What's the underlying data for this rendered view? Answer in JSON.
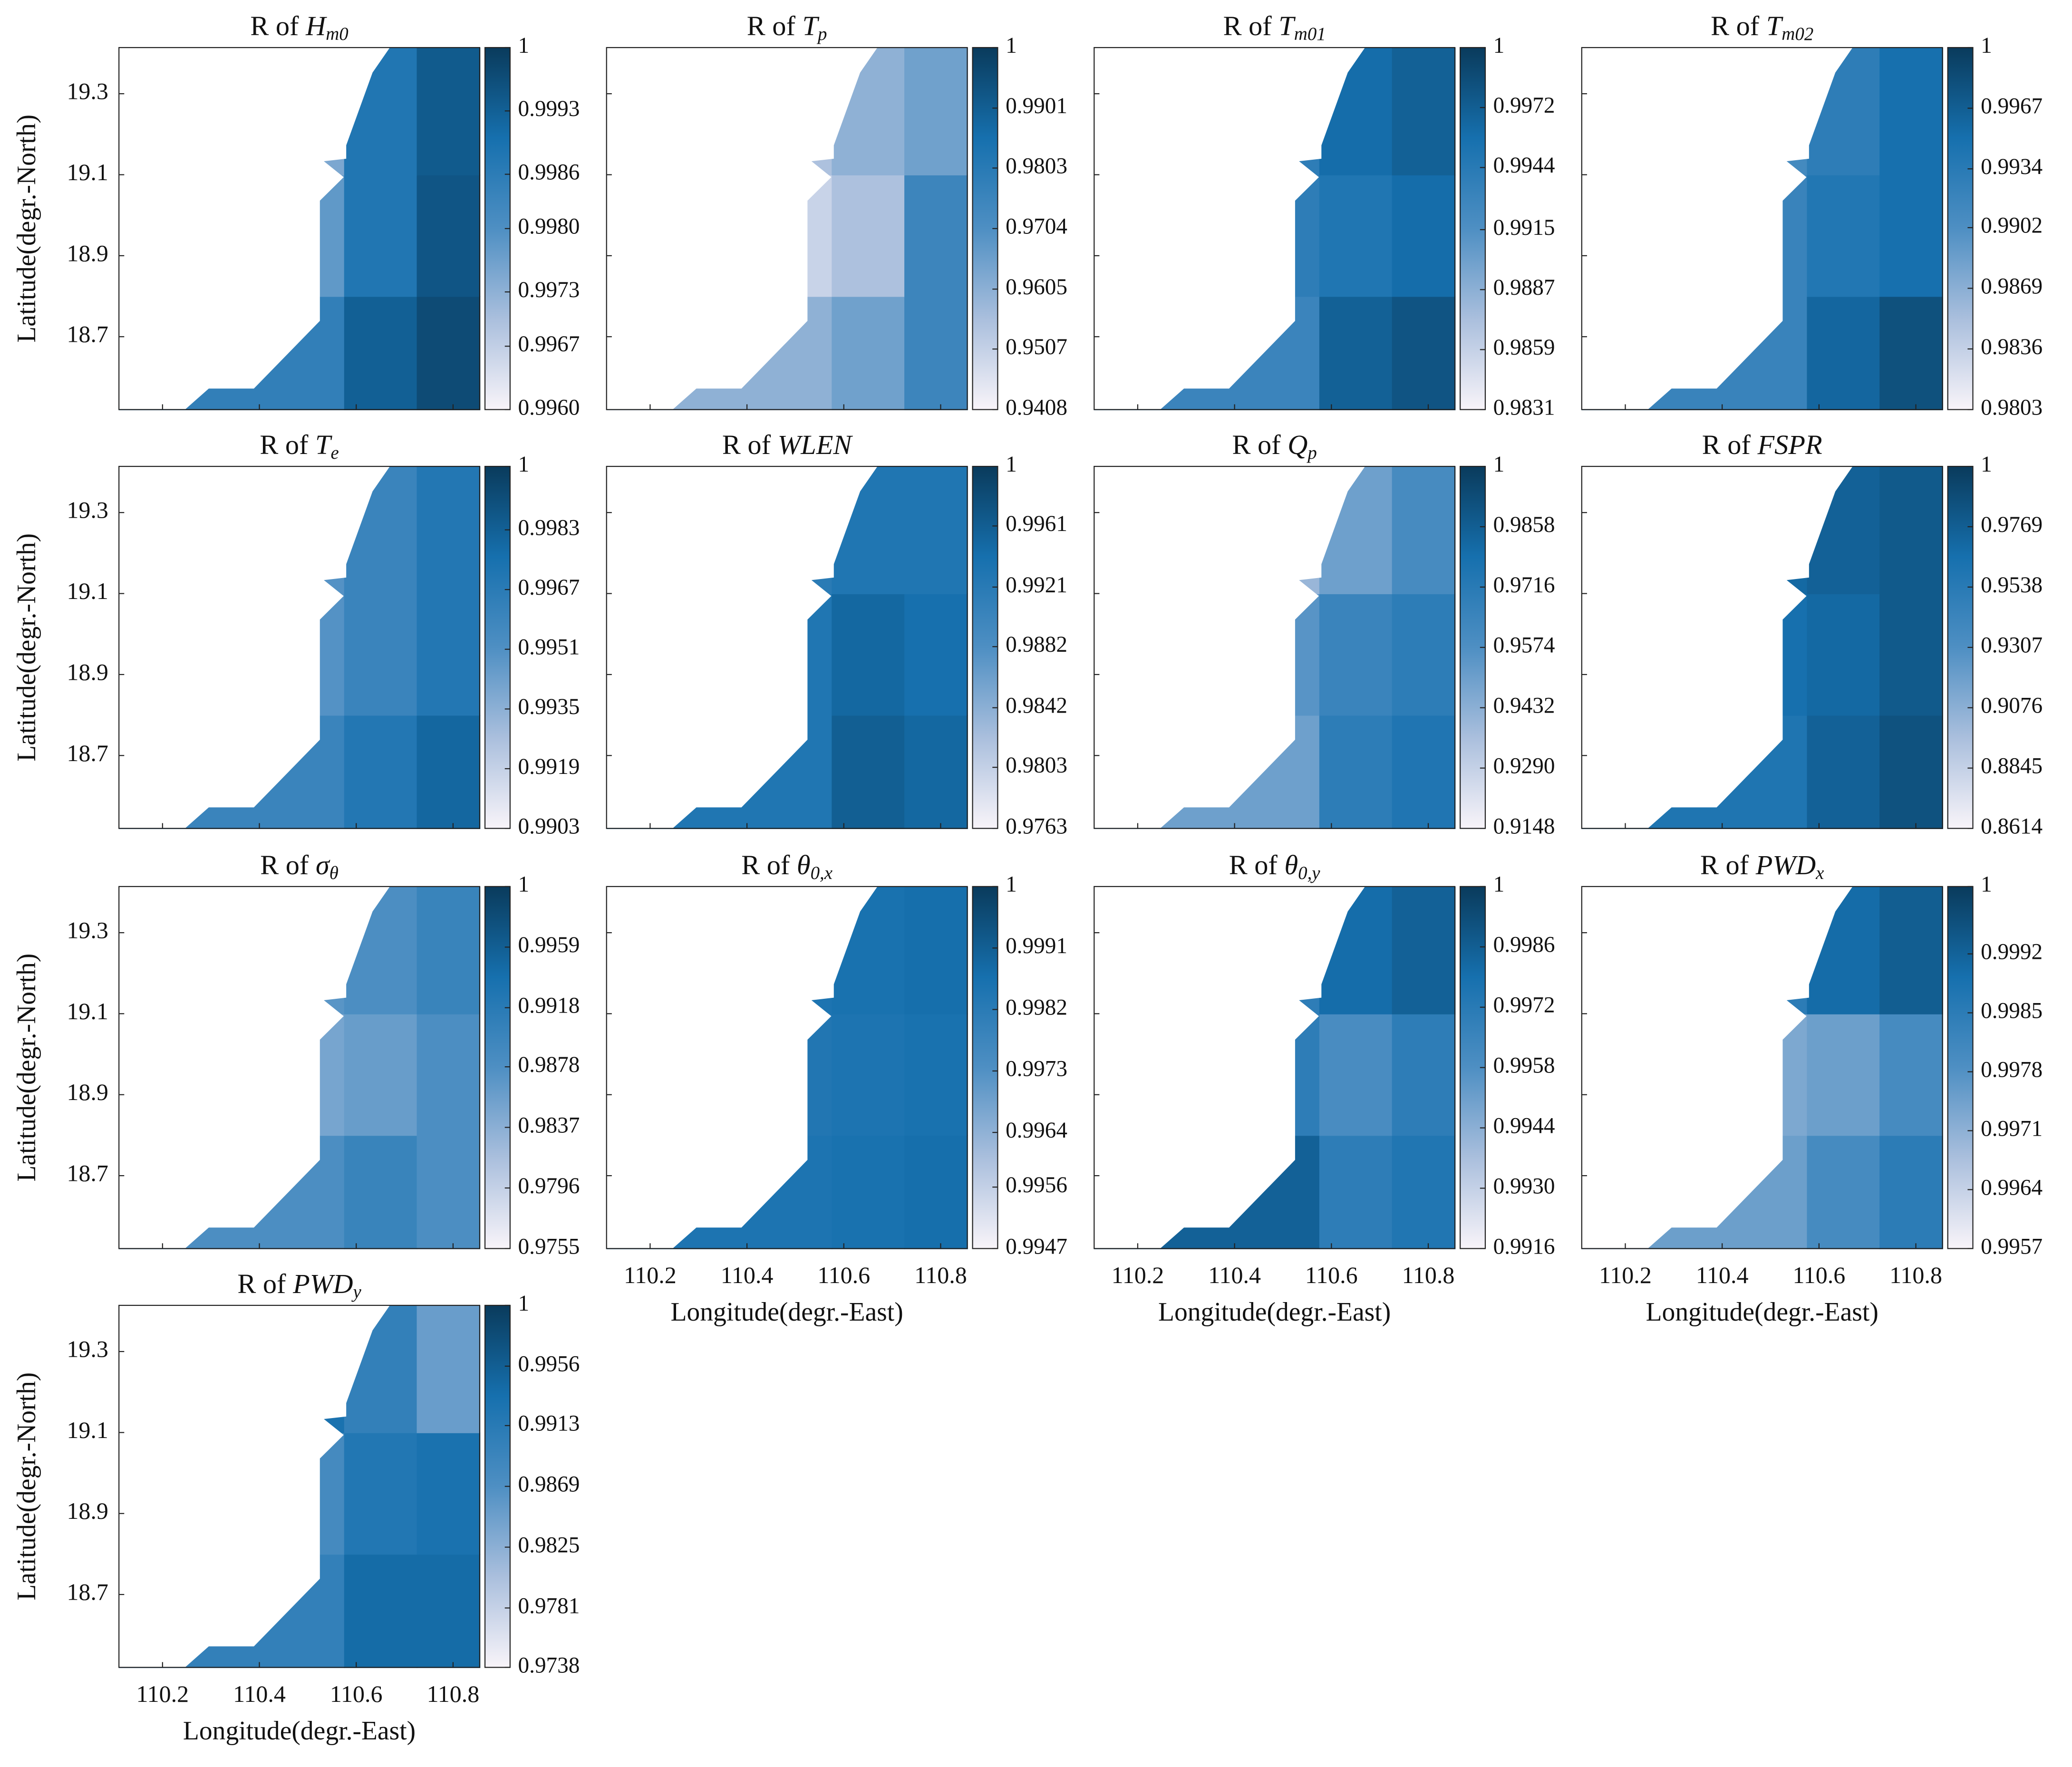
{
  "colormap": [
    "#f8f4f9",
    "#aabfdd",
    "#4e8fc3",
    "#1670ae",
    "#0a3b5c"
  ],
  "chart_data": [
    {
      "type": "contour",
      "title": {
        "text": "R of ",
        "symbol": "H",
        "subscript": "m0"
      },
      "ylabel": "Latitude(degr.-North)",
      "x": [
        110.5,
        110.65,
        110.8
      ],
      "y": [
        18.65,
        18.95,
        19.25
      ],
      "z": [
        [
          0.9985,
          0.9993,
          0.9997
        ],
        [
          0.9978,
          0.9988,
          0.9995
        ],
        [
          0.9975,
          0.9988,
          0.9994
        ]
      ],
      "clim": [
        0.996,
        1
      ],
      "colorbar_ticks": [
        1,
        0.9993,
        0.9986,
        {
          "value": 0.998,
          "label": "0.9980"
        },
        0.9973,
        0.9967,
        {
          "value": 0.996,
          "label": "0.9960"
        }
      ],
      "xlim": [
        110.11,
        110.855
      ],
      "ylim": [
        18.52,
        19.414
      ],
      "xticks": [
        110.2,
        110.4,
        110.6,
        110.8
      ],
      "yticks": [
        18.7,
        18.9,
        19.1,
        19.3
      ]
    },
    {
      "type": "contour",
      "title": {
        "text": "R of ",
        "symbol": "T",
        "subscript": "p"
      },
      "x": [
        110.5,
        110.65,
        110.8
      ],
      "y": [
        18.65,
        18.95,
        19.25
      ],
      "z": [
        [
          0.96,
          0.965,
          0.975
        ],
        [
          0.95,
          0.955,
          0.975
        ],
        [
          0.955,
          0.96,
          0.965
        ]
      ],
      "clim": [
        0.9408,
        1
      ],
      "colorbar_ticks": [
        1,
        0.9901,
        0.9803,
        0.9704,
        0.9605,
        0.9507,
        0.9408
      ],
      "xlim": [
        110.11,
        110.855
      ],
      "ylim": [
        18.52,
        19.414
      ],
      "xticks": [
        110.2,
        110.4,
        110.6,
        110.8
      ],
      "yticks": [
        18.7,
        18.9,
        19.1,
        19.3
      ]
    },
    {
      "type": "contour",
      "title": {
        "text": "R of ",
        "symbol": "T",
        "subscript": "m01"
      },
      "x": [
        110.5,
        110.65,
        110.8
      ],
      "y": [
        18.65,
        18.95,
        19.25
      ],
      "z": [
        [
          0.993,
          0.997,
          0.998
        ],
        [
          0.994,
          0.995,
          0.996
        ],
        [
          0.994,
          0.996,
          0.997
        ]
      ],
      "clim": [
        0.9831,
        1
      ],
      "colorbar_ticks": [
        1,
        0.9972,
        0.9944,
        0.9915,
        0.9887,
        0.9859,
        0.9831
      ],
      "xlim": [
        110.11,
        110.855
      ],
      "ylim": [
        18.52,
        19.414
      ],
      "xticks": [
        110.2,
        110.4,
        110.6,
        110.8
      ],
      "yticks": [
        18.7,
        18.9,
        19.1,
        19.3
      ]
    },
    {
      "type": "contour",
      "title": {
        "text": "R of ",
        "symbol": "T",
        "subscript": "m02"
      },
      "x": [
        110.5,
        110.65,
        110.8
      ],
      "y": [
        18.65,
        18.95,
        19.25
      ],
      "z": [
        [
          0.992,
          0.996,
          0.998
        ],
        [
          0.992,
          0.994,
          0.995
        ],
        [
          0.991,
          0.993,
          0.995
        ]
      ],
      "clim": [
        0.9803,
        1
      ],
      "colorbar_ticks": [
        1,
        0.9967,
        0.9934,
        0.9902,
        0.9869,
        0.9836,
        0.9803
      ],
      "xlim": [
        110.11,
        110.855
      ],
      "ylim": [
        18.52,
        19.414
      ],
      "xticks": [
        110.2,
        110.4,
        110.6,
        110.8
      ],
      "yticks": [
        18.7,
        18.9,
        19.1,
        19.3
      ]
    },
    {
      "type": "contour",
      "title": {
        "text": "R of ",
        "symbol": "T",
        "subscript": "e"
      },
      "ylabel": "Latitude(degr.-North)",
      "x": [
        110.5,
        110.65,
        110.8
      ],
      "y": [
        18.65,
        18.95,
        19.25
      ],
      "z": [
        [
          0.996,
          0.997,
          0.998
        ],
        [
          0.995,
          0.996,
          0.997
        ],
        [
          0.995,
          0.996,
          0.997
        ]
      ],
      "clim": [
        0.9903,
        1
      ],
      "colorbar_ticks": [
        1,
        0.9983,
        0.9967,
        0.9951,
        0.9935,
        0.9919,
        0.9903
      ],
      "xlim": [
        110.11,
        110.855
      ],
      "ylim": [
        18.52,
        19.414
      ],
      "xticks": [
        110.2,
        110.4,
        110.6,
        110.8
      ],
      "yticks": [
        18.7,
        18.9,
        19.1,
        19.3
      ]
    },
    {
      "type": "contour",
      "title": {
        "text": "R of ",
        "symbol": "WLEN"
      },
      "x": [
        110.5,
        110.65,
        110.8
      ],
      "y": [
        18.65,
        18.95,
        19.25
      ],
      "z": [
        [
          0.993,
          0.996,
          0.995
        ],
        [
          0.993,
          0.995,
          0.994
        ],
        [
          0.992,
          0.993,
          0.993
        ]
      ],
      "clim": [
        0.9763,
        1
      ],
      "colorbar_ticks": [
        1,
        0.9961,
        0.9921,
        0.9882,
        0.9842,
        0.9803,
        0.9763
      ],
      "xlim": [
        110.11,
        110.855
      ],
      "ylim": [
        18.52,
        19.414
      ],
      "xticks": [
        110.2,
        110.4,
        110.6,
        110.8
      ],
      "yticks": [
        18.7,
        18.9,
        19.1,
        19.3
      ]
    },
    {
      "type": "contour",
      "title": {
        "text": "R of ",
        "symbol": "Q",
        "subscript": "p"
      },
      "x": [
        110.5,
        110.65,
        110.8
      ],
      "y": [
        18.65,
        18.95,
        19.25
      ],
      "z": [
        [
          0.95,
          0.97,
          0.975
        ],
        [
          0.955,
          0.965,
          0.97
        ],
        [
          0.94,
          0.95,
          0.96
        ]
      ],
      "clim": [
        0.9148,
        1
      ],
      "colorbar_ticks": [
        1,
        0.9858,
        0.9716,
        0.9574,
        0.9432,
        {
          "value": 0.929,
          "label": "0.9290"
        },
        0.9148
      ],
      "xlim": [
        110.11,
        110.855
      ],
      "ylim": [
        18.52,
        19.414
      ],
      "xticks": [
        110.2,
        110.4,
        110.6,
        110.8
      ],
      "yticks": [
        18.7,
        18.9,
        19.1,
        19.3
      ]
    },
    {
      "type": "contour",
      "title": {
        "text": "R of ",
        "symbol": "FSPR"
      },
      "x": [
        110.5,
        110.65,
        110.8
      ],
      "y": [
        18.65,
        18.95,
        19.25
      ],
      "z": [
        [
          0.96,
          0.975,
          0.985
        ],
        [
          0.965,
          0.97,
          0.98
        ],
        [
          0.97,
          0.975,
          0.98
        ]
      ],
      "clim": [
        0.8614,
        1
      ],
      "colorbar_ticks": [
        1,
        0.9769,
        0.9538,
        0.9307,
        0.9076,
        0.8845,
        0.8614
      ],
      "xlim": [
        110.11,
        110.855
      ],
      "ylim": [
        18.52,
        19.414
      ],
      "xticks": [
        110.2,
        110.4,
        110.6,
        110.8
      ],
      "yticks": [
        18.7,
        18.9,
        19.1,
        19.3
      ]
    },
    {
      "type": "contour",
      "title": {
        "text": "R of ",
        "symbol": "σ",
        "subscript": "θ"
      },
      "ylabel": "Latitude(degr.-North)",
      "x": [
        110.5,
        110.65,
        110.8
      ],
      "y": [
        18.65,
        18.95,
        19.25
      ],
      "z": [
        [
          0.988,
          0.99,
          0.988
        ],
        [
          0.985,
          0.986,
          0.988
        ],
        [
          0.987,
          0.988,
          0.99
        ]
      ],
      "clim": [
        0.9755,
        1
      ],
      "colorbar_ticks": [
        1,
        0.9959,
        0.9918,
        0.9878,
        0.9837,
        0.9796,
        0.9755
      ],
      "xlim": [
        110.11,
        110.855
      ],
      "ylim": [
        18.52,
        19.414
      ],
      "xticks": [
        110.2,
        110.4,
        110.6,
        110.8
      ],
      "yticks": [
        18.7,
        18.9,
        19.1,
        19.3
      ]
    },
    {
      "type": "contour",
      "title": {
        "text": "R of ",
        "symbol": "θ",
        "subscript": "0,x"
      },
      "xlabel": "Longitude(degr.-East)",
      "x": [
        110.5,
        110.65,
        110.8
      ],
      "y": [
        18.65,
        18.95,
        19.25
      ],
      "z": [
        [
          0.9985,
          0.9986,
          0.9987
        ],
        [
          0.9984,
          0.9985,
          0.9986
        ],
        [
          0.9985,
          0.9986,
          0.9987
        ]
      ],
      "clim": [
        0.9947,
        1
      ],
      "colorbar_ticks": [
        1,
        0.9991,
        0.9982,
        0.9973,
        0.9964,
        0.9956,
        0.9947
      ],
      "xlim": [
        110.11,
        110.855
      ],
      "ylim": [
        18.52,
        19.414
      ],
      "xticks": [
        110.2,
        110.4,
        110.6,
        110.8
      ],
      "yticks": [
        18.7,
        18.9,
        19.1,
        19.3
      ]
    },
    {
      "type": "contour",
      "title": {
        "text": "R of ",
        "symbol": "θ",
        "subscript": "0,y"
      },
      "xlabel": "Longitude(degr.-East)",
      "x": [
        110.5,
        110.65,
        110.8
      ],
      "y": [
        18.65,
        18.95,
        19.25
      ],
      "z": [
        [
          0.9985,
          0.997,
          0.9975
        ],
        [
          0.997,
          0.996,
          0.997
        ],
        [
          0.997,
          0.998,
          0.9985
        ]
      ],
      "clim": [
        0.9916,
        1
      ],
      "colorbar_ticks": [
        1,
        0.9986,
        0.9972,
        0.9958,
        0.9944,
        {
          "value": 0.993,
          "label": "0.9930"
        },
        0.9916
      ],
      "xlim": [
        110.11,
        110.855
      ],
      "ylim": [
        18.52,
        19.414
      ],
      "xticks": [
        110.2,
        110.4,
        110.6,
        110.8
      ],
      "yticks": [
        18.7,
        18.9,
        19.1,
        19.3
      ]
    },
    {
      "type": "contour",
      "title": {
        "text": "R of ",
        "symbol": "PWD",
        "subscript": "x"
      },
      "xlabel": "Longitude(degr.-East)",
      "x": [
        110.5,
        110.65,
        110.8
      ],
      "y": [
        18.65,
        18.95,
        19.25
      ],
      "z": [
        [
          0.9975,
          0.998,
          0.9985
        ],
        [
          0.9973,
          0.9975,
          0.998
        ],
        [
          0.9985,
          0.999,
          0.9993
        ]
      ],
      "clim": [
        0.9957,
        1
      ],
      "colorbar_ticks": [
        1,
        0.9992,
        0.9985,
        0.9978,
        0.9971,
        0.9964,
        0.9957
      ],
      "xlim": [
        110.11,
        110.855
      ],
      "ylim": [
        18.52,
        19.414
      ],
      "xticks": [
        110.2,
        110.4,
        110.6,
        110.8
      ],
      "yticks": [
        18.7,
        18.9,
        19.1,
        19.3
      ]
    },
    {
      "type": "contour",
      "title": {
        "text": "R of ",
        "symbol": "PWD",
        "subscript": "y"
      },
      "xlabel": "Longitude(degr.-East)",
      "ylabel": "Latitude(degr.-North)",
      "x": [
        110.5,
        110.65,
        110.8
      ],
      "y": [
        18.65,
        18.95,
        19.25
      ],
      "z": [
        [
          0.99,
          0.994,
          0.994
        ],
        [
          0.988,
          0.992,
          0.993
        ],
        [
          0.993,
          0.99,
          0.985
        ]
      ],
      "clim": [
        0.9738,
        1
      ],
      "colorbar_ticks": [
        1,
        0.9956,
        0.9913,
        0.9869,
        0.9825,
        0.9781,
        0.9738
      ],
      "xlim": [
        110.11,
        110.855
      ],
      "ylim": [
        18.52,
        19.414
      ],
      "xticks": [
        110.2,
        110.4,
        110.6,
        110.8
      ],
      "yticks": [
        18.7,
        18.9,
        19.1,
        19.3
      ]
    }
  ]
}
